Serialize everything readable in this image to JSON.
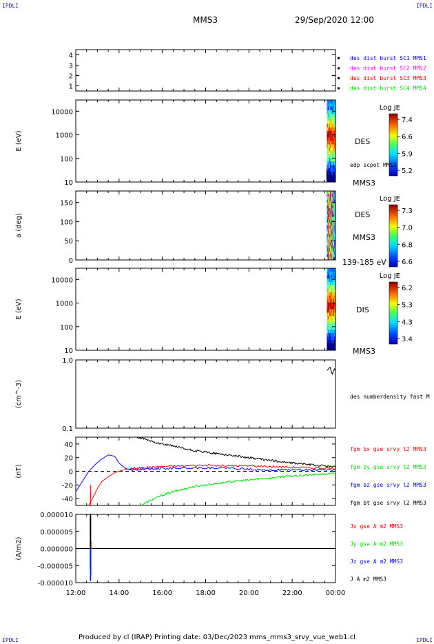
{
  "corners": {
    "top_left": "IPDLI",
    "top_right": "IPDLI",
    "bottom_left": "IPDLI",
    "bottom_right": "IPDLI"
  },
  "header": {
    "spacecraft": "MMS3",
    "datetime": "29/Sep/2020 12:00"
  },
  "footer": {
    "text": "Produced by cl (IRAP)   Printing date: 03/Dec/2023   mms_mms3_srvy_vue_web1.cl"
  },
  "colors": {
    "blue": "#0000ff",
    "magenta": "#ff00ff",
    "red": "#ff0000",
    "green": "#00dd00",
    "black": "#000000"
  },
  "chart_data": [
    {
      "type": "scatter",
      "id": "burst",
      "ylim": [
        0.5,
        4.5
      ],
      "yticks": [
        "1",
        "2",
        "3",
        "4"
      ],
      "legend": [
        {
          "text": "des dist burst SC1 MMS1",
          "color": "#0000ff"
        },
        {
          "text": "des dist burst SC2 MMS2",
          "color": "#ff00ff"
        },
        {
          "text": "des dist burst SC3 MMS3",
          "color": "#ff0000"
        },
        {
          "text": "des dist burst SC4 MMS4",
          "color": "#00dd00"
        }
      ]
    },
    {
      "type": "heatmap",
      "id": "des-energy",
      "ylabel": "E (eV)",
      "yscale": "log",
      "ylim": [
        10,
        30000
      ],
      "yticks": [
        "10",
        "100",
        "1000",
        "10000"
      ],
      "data_start_hour": 23.6,
      "labels": [
        "DES",
        "edp scpot MMS3",
        "MMS3"
      ],
      "colorbar": {
        "title": "Log JE",
        "ticks": [
          "7.4",
          "6.6",
          "5.9",
          "5.2"
        ]
      }
    },
    {
      "type": "heatmap",
      "id": "des-pitch",
      "ylabel": "a (deg)",
      "ylim": [
        0,
        180
      ],
      "yticks": [
        "0",
        "50",
        "100",
        "150"
      ],
      "data_start_hour": 23.6,
      "labels": [
        "DES",
        "MMS3",
        "139-185 eV"
      ],
      "colorbar": {
        "title": "Log JE",
        "ticks": [
          "7.3",
          "7.0",
          "6.8",
          "6.6"
        ]
      }
    },
    {
      "type": "heatmap",
      "id": "dis-energy",
      "ylabel": "E (eV)",
      "yscale": "log",
      "ylim": [
        10,
        30000
      ],
      "yticks": [
        "10",
        "100",
        "1000",
        "10000"
      ],
      "data_start_hour": 23.6,
      "labels": [
        "DIS",
        "MMS3"
      ],
      "colorbar": {
        "title": "Log JE",
        "ticks": [
          "6.2",
          "5.3",
          "4.3",
          "3.4"
        ]
      }
    },
    {
      "type": "line",
      "id": "density",
      "ylabel": "(cm^-3)",
      "yscale": "log",
      "ylim": [
        0.1,
        1.0
      ],
      "yticks": [
        "0.1",
        "1.0"
      ],
      "labels": [
        "des numberdensity fast M"
      ],
      "series": [
        {
          "color": "#000000",
          "x": [
            23.6,
            23.75,
            23.85,
            23.95,
            24.0
          ],
          "y": [
            0.7,
            0.78,
            0.62,
            0.74,
            0.7
          ]
        }
      ]
    },
    {
      "type": "line",
      "id": "magnetic-field",
      "ylabel": "(nT)",
      "ylim": [
        -50,
        50
      ],
      "yticks": [
        "-40",
        "-20",
        "0",
        "20",
        "40"
      ],
      "series": [
        {
          "name": "fgm bx gse srvy l2 MMS3",
          "color": "#ff0000",
          "x": [
            12.6,
            12.8,
            13.0,
            13.2,
            13.5,
            13.8,
            14.2,
            14.6,
            15.0,
            15.5,
            16.0,
            17.0,
            18.0,
            19.0,
            20.0,
            21.0,
            22.0,
            23.0,
            24.0
          ],
          "y": [
            -50,
            -38,
            -25,
            -15,
            -8,
            -2,
            2,
            4,
            5,
            6,
            7,
            8,
            9,
            8,
            8,
            7,
            6,
            5,
            4
          ]
        },
        {
          "name": "fgm by gse srvy l2 MMS3",
          "color": "#00dd00",
          "x": [
            15.0,
            15.5,
            16.0,
            16.5,
            17.0,
            17.5,
            18.0,
            18.5,
            19.0,
            19.5,
            20.0,
            20.5,
            21.0,
            21.5,
            22.0,
            22.5,
            23.0,
            23.5,
            24.0
          ],
          "y": [
            -50,
            -42,
            -35,
            -30,
            -26,
            -22,
            -20,
            -18,
            -16,
            -14,
            -13,
            -11,
            -10,
            -8,
            -7,
            -6,
            -5,
            -4,
            -3
          ]
        },
        {
          "name": "fgm bz gse srvy l2 MMS3",
          "color": "#0000ff",
          "x": [
            12.0,
            12.3,
            12.6,
            12.9,
            13.2,
            13.5,
            13.8,
            14.0,
            14.3,
            14.6,
            15.0,
            15.5,
            16.0,
            17.0,
            18.0,
            19.0,
            20.0,
            21.0,
            22.0,
            23.0,
            24.0
          ],
          "y": [
            -30,
            -15,
            0,
            10,
            18,
            24,
            22,
            12,
            4,
            2,
            3,
            4,
            4,
            5,
            5,
            5,
            3,
            2,
            2,
            2,
            2
          ]
        },
        {
          "name": "fgm bt gse srvy l2 MMS3",
          "color": "#000000",
          "x": [
            14.8,
            15.2,
            15.6,
            16.0,
            16.5,
            17.0,
            17.5,
            18.0,
            18.5,
            19.0,
            19.5,
            20.0,
            20.5,
            21.0,
            21.5,
            22.0,
            22.5,
            23.0,
            23.5,
            24.0
          ],
          "y": [
            50,
            47,
            43,
            40,
            37,
            33,
            30,
            28,
            26,
            24,
            22,
            20,
            18,
            16,
            14,
            12,
            11,
            9,
            8,
            6
          ]
        }
      ]
    },
    {
      "type": "line",
      "id": "current-density",
      "ylabel": "(A/m2)",
      "ylim": [
        -1e-05,
        1e-05
      ],
      "yticks": [
        "-0.000010",
        "-0.000005",
        "0.000000",
        "0.000005",
        "0.000010"
      ],
      "spike_hour": 12.68,
      "series": [
        {
          "name": "Jx gse A m2 MMS3",
          "color": "#ff0000"
        },
        {
          "name": "Jy gse A m2 MMS3",
          "color": "#00dd00"
        },
        {
          "name": "Jz gse A m2 MMS3",
          "color": "#0000ff"
        },
        {
          "name": "J A m2 MMS3",
          "color": "#000000"
        }
      ]
    }
  ],
  "time_axis": {
    "xlim": [
      12,
      24
    ],
    "ticks": [
      "12:00",
      "14:00",
      "16:00",
      "18:00",
      "20:00",
      "22:00",
      "00:00"
    ],
    "tick_hours": [
      12,
      14,
      16,
      18,
      20,
      22,
      24
    ]
  }
}
